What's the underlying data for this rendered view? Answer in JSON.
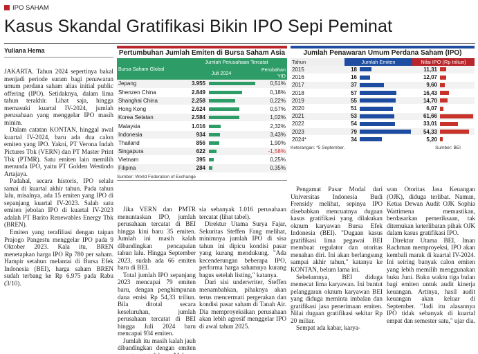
{
  "section": "IPO SAHAM",
  "headline": "Kasus Skandal Gratifikasi Bikin IPO Sepi Peminat",
  "byline": "Yuliana Hema",
  "col1": [
    "JAKARTA. Tahun 2024 sepertinya bakal menjadi periode suram bagi penawaran umum perdana saham alias initial public offering (IPO). Setidaknya, dalam lima tahun terakhir. Lihat saja, hingga memasuki kuartal IV-2024, jumlah perusahaan yang menggelar IPO masih minim.",
    "Dalam catatan KONTAN, hinggal awal kuartal IV-2024, baru ada dua calon emiten yang IPO. Yakni, PT Verona Indah Pictures Tbk (VERN) dan PT Master Print Tbk (PTMR). Satu emiten lain memilih menunda IPO, yaitu PT Golden Westindo Artajaya.",
    "Padahal, secara historis, IPO selalu ramai di kuartal akhir tahun. Pada tahun lalu, misalnya, ada 15 emiten yang IPO di sepanjang kuartal IV-2023. Salah satu emiten jebolan IPO di kuartal IV-2023 adalah PT Barito Renewables Energy Tbk (BREN).",
    "Emiten yang terafiliasi dengan taipan Prajogo Pangestu menggelar IPO pada 9 Oktober 2023. Kala itu, BREN menetapkan harga IPO Rp 780 per saham. Hampir setahun melantai di Bursa Efek Indonesia (BEI), harga saham BREN sudah terbang ke Rp 6.975 pada Rabu (3/10)."
  ],
  "col2": [
    "Jika VERN dan PMTR menuntaskan IPO, jumlah perusahaan tercatat di BEI hingga kini baru 35 emiten. Jumlah ini masih kalah dibandingkan pencapaian tahun lalu. Hingga September 2023, sudah ada 66 emiten baru di BEI.",
    "Total jumlah IPO sepanjang 2023 mencapai 79 emiten baru, dengan penghimpunan dana emisi Rp 54,33 triliun. Bila ditotal secara keseluruhan, jumlah perusahaan tercatat di BEI hingga Juli 2024 baru mencapai 934 emiten.",
    "Jumlah itu masih kalah jauh dibandingkan dengan emiten yang tercatat di bursa Malay-"
  ],
  "col3": [
    "sia sebanyak 1.016 perusahaan tercatat (lihat tabel).",
    "Direktur Utama Surya Fajar, Sekuritas Steffen Fang melihat, minimnya jumlah IPO di sisa tahun ini dipicu kondisi pasar yang kurang mendukung. \"Ada kecenderungan beberapa IPO, performa harga sahamnya kurang bagus setelah listing,\" katanya.",
    "Dari sisi underwriter, Steffen menambahkan, pihaknya akan terus mencermati pergerakan dan kondisi pasar saham di Tanah Air. Dia memproyeksikan perusahaan akan lebih agresif menggelar IPO di awal tahun 2025."
  ],
  "col4": [
    "Pengamat Pasar Modal dari Universitas Indonesia Budi Frensidy melihat, sepinya IPO disebabkan mencuatnya dugaan kasus gratifikasi yang dilakukan oknum karyawan Bursa Efek Indonesia (BEI). \"Dugaan kasus gratifikasi lima pegawai BEI membuat regulator dan otoritas menahan diri. Ini akan berlangsung sampai akhir tahun,\" katanya ke KONTAN, belum lama ini.",
    "Sebelumnya, BEI diduga memecat lima karyawan. Ini buntut pelanggaran oknum karyawan BEI yang diduga meminta imbalan dan gratifikasi jasa penerimaan emiten. Nilai dugaan gratifikasi sekitar Rp 20 miliar.",
    "Sempat ada kabar, karya-"
  ],
  "col5": [
    "wan Otoritas Jasa Keuangan (OJK), diduga terlibat. Namun, Ketua Dewan Audit OJK Sophia Wattimena memastikan, berdasarkan pemeriksaan, tak ditemukan keterlibatan pihak OJK dalam kasus gratifikasi IPO.",
    "Direktur Utama BEI, Iman Rachman memproyeksi, IPO akan kembali marak di kuartal IV-2024. Ini seiring banyak calon emiten yang lebih memilih menggunakan buku Juni. Buku waktu tiga bulan bagi emiten untuk audit kinerja keuangan. Artinya, hasil audit keuangan akan keluar di September. \"Jadi itu alasannya IPO tidak sebanyak di kuartal empat dan semester satu,\" ujar dia."
  ],
  "table1": {
    "title": "Pertumbuhan Jumlah Emiten di Bursa Saham Asia",
    "col_exchange": "Bursa Saham Global",
    "col_group": "Jumlah Perusahaan Tercatat",
    "col_count": "Juli 2024",
    "col_change": "Perubahan YtD",
    "bar_color": "#2e9c67",
    "neg_color": "#c92a2a",
    "rows": [
      {
        "name": "Jepang",
        "count": "3.955",
        "value": 3955,
        "change": "0,51%",
        "neg": false
      },
      {
        "name": "Shenzen China",
        "count": "2.849",
        "value": 2849,
        "change": "0,18%",
        "neg": false
      },
      {
        "name": "Shanghai China",
        "count": "2.258",
        "value": 2258,
        "change": "0,22%",
        "neg": false
      },
      {
        "name": "Hong Kong",
        "count": "2.624",
        "value": 2624,
        "change": "0,57%",
        "neg": false
      },
      {
        "name": "Korea Selatan",
        "count": "2.584",
        "value": 2584,
        "change": "1,02%",
        "neg": false
      },
      {
        "name": "Malaysia",
        "count": "1.016",
        "value": 1016,
        "change": "2,32%",
        "neg": false
      },
      {
        "name": "Indonesia",
        "count": "934",
        "value": 934,
        "change": "3,43%",
        "neg": false
      },
      {
        "name": "Thailand",
        "count": "856",
        "value": 856,
        "change": "1,90%",
        "neg": false
      },
      {
        "name": "Singapura",
        "count": "622",
        "value": 622,
        "change": "-1,58%",
        "neg": true
      },
      {
        "name": "Vietnam",
        "count": "395",
        "value": 395,
        "change": "0,25%",
        "neg": false
      },
      {
        "name": "Filipina",
        "count": "284",
        "value": 284,
        "change": "0,35%",
        "neg": false
      }
    ],
    "source": "Sumber: World Federation of Exchange"
  },
  "table2": {
    "title": "Jumlah Penawaran Umum Perdana Saham (IPO)",
    "col_year": "Tahun",
    "col_count": "Jumlah Emiten",
    "col_value": "Nilai IPO (Rp triliun)",
    "blue": "#1d4ca0",
    "red": "#c7332a",
    "rows": [
      {
        "year": "2015",
        "count": 18,
        "value": "11,31",
        "v": 11.31
      },
      {
        "year": "2016",
        "count": 16,
        "value": "12,07",
        "v": 12.07
      },
      {
        "year": "2017",
        "count": 37,
        "value": "9,60",
        "v": 9.6
      },
      {
        "year": "2018",
        "count": 57,
        "value": "16,43",
        "v": 16.43
      },
      {
        "year": "2019",
        "count": 55,
        "value": "14,70",
        "v": 14.7
      },
      {
        "year": "2020",
        "count": 51,
        "value": "6,07",
        "v": 6.07
      },
      {
        "year": "2021",
        "count": 53,
        "value": "61,66",
        "v": 61.66
      },
      {
        "year": "2022",
        "count": 54,
        "value": "33,01",
        "v": 33.01
      },
      {
        "year": "2023",
        "count": 79,
        "value": "54,33",
        "v": 54.33
      },
      {
        "year": "2024*",
        "count": 34,
        "value": "5,20",
        "v": 5.2
      }
    ],
    "note": "Keterangan: *5 September.",
    "source": "Sumber: BEI"
  }
}
